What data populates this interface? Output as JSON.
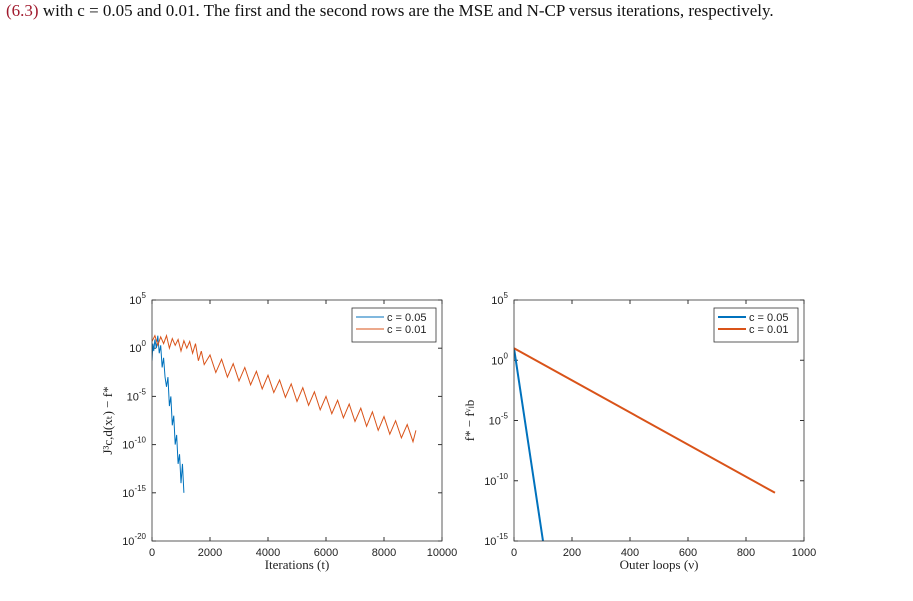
{
  "caption": {
    "ref": "(6.3)",
    "text": "with c = 0.05 and 0.01. The first and the second rows are the MSE and N-CP versus iterations, respectively."
  },
  "chart_data": [
    {
      "type": "line",
      "log_y": true,
      "line_width": 1,
      "legend": "top-right",
      "xlabel": "Iterations (t)",
      "ylabel": "J³c,d(xₜ) − f*",
      "xlim": [
        0,
        10000
      ],
      "xticks": [
        0,
        2000,
        4000,
        6000,
        8000,
        10000
      ],
      "ylim": [
        1e-20,
        100000
      ],
      "yticks": [
        {
          "value": 1e-20,
          "label": "10",
          "exponent": "-20"
        },
        {
          "value": 1e-15,
          "label": "10",
          "exponent": "-15"
        },
        {
          "value": 1e-10,
          "label": "10",
          "exponent": "-10"
        },
        {
          "value": 1e-05,
          "label": "10",
          "exponent": "-5"
        },
        {
          "value": 1,
          "label": "10",
          "exponent": "0"
        },
        {
          "value": 100000,
          "label": "10",
          "exponent": "5"
        }
      ],
      "series": [
        {
          "name": "c = 0.05",
          "color": "#0072bd",
          "x": [
            0,
            30,
            60,
            100,
            150,
            200,
            250,
            300,
            350,
            400,
            450,
            500,
            550,
            600,
            650,
            700,
            750,
            800,
            850,
            900,
            950,
            1000,
            1050,
            1100
          ],
          "values": [
            0.05,
            3,
            0.5,
            8,
            1,
            20,
            0.3,
            2,
            0.01,
            0.1,
            0.001,
            0.0001,
            0.001,
            1e-06,
            1e-05,
            1e-08,
            1e-07,
            1e-10,
            1e-09,
            1e-12,
            1e-11,
            1e-14,
            1e-12,
            1e-15
          ]
        },
        {
          "name": "c = 0.01",
          "color": "#d95319",
          "x": [
            0,
            100,
            200,
            300,
            400,
            500,
            600,
            700,
            800,
            900,
            1000,
            1100,
            1200,
            1300,
            1400,
            1500,
            1600,
            1700,
            1800,
            2000,
            2200,
            2400,
            2600,
            2800,
            3000,
            3200,
            3400,
            3600,
            3800,
            4000,
            4200,
            4400,
            4600,
            4800,
            5000,
            5200,
            5400,
            5600,
            5800,
            6000,
            6200,
            6400,
            6600,
            6800,
            7000,
            7200,
            7400,
            7600,
            7800,
            8000,
            8200,
            8400,
            8600,
            8800,
            9000,
            9100
          ],
          "values": [
            5,
            20,
            2,
            15,
            3,
            20,
            1,
            10,
            2,
            8,
            0.5,
            6,
            1,
            5,
            0.3,
            3,
            0.05,
            0.5,
            0.02,
            0.2,
            0.003,
            0.07,
            0.001,
            0.025,
            0.0004,
            0.01,
            0.00016,
            0.004,
            6e-05,
            0.0016,
            2.5e-05,
            0.0005,
            8e-06,
            0.0002,
            3e-06,
            8e-05,
            1.2e-06,
            3e-05,
            4e-07,
            1e-05,
            1.6e-07,
            4e-06,
            6e-08,
            1.6e-06,
            2.5e-08,
            6e-07,
            8e-09,
            2.5e-07,
            3e-09,
            8e-08,
            1.2e-09,
            3e-08,
            5e-10,
            1.2e-08,
            2e-10,
            3e-09
          ]
        }
      ]
    },
    {
      "type": "line",
      "log_y": true,
      "line_width": 2,
      "legend": "top-right",
      "xlabel": "Outer loops (ν)",
      "ylabel": "f* − fᵛₗb",
      "xlim": [
        0,
        1000
      ],
      "xticks": [
        0,
        200,
        400,
        600,
        800,
        1000
      ],
      "ylim": [
        1e-15,
        100000
      ],
      "yticks": [
        {
          "value": 1e-15,
          "label": "10",
          "exponent": "-15"
        },
        {
          "value": 1e-10,
          "label": "10",
          "exponent": "-10"
        },
        {
          "value": 1e-05,
          "label": "10",
          "exponent": "-5"
        },
        {
          "value": 1,
          "label": "10",
          "exponent": "0"
        },
        {
          "value": 100000,
          "label": "10",
          "exponent": "5"
        }
      ],
      "series": [
        {
          "name": "c = 0.05",
          "color": "#0072bd",
          "x": [
            0,
            100
          ],
          "values": [
            10,
            1e-15
          ]
        },
        {
          "name": "c = 0.01",
          "color": "#d95319",
          "x": [
            0,
            900
          ],
          "values": [
            10,
            1e-11
          ]
        }
      ]
    }
  ]
}
